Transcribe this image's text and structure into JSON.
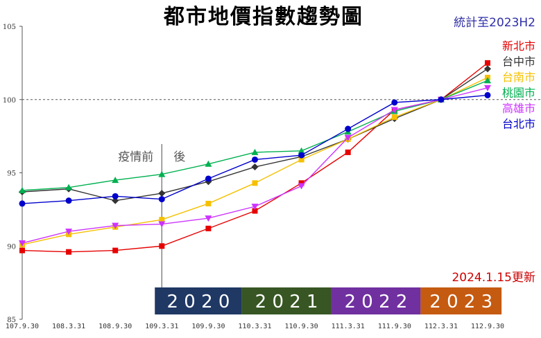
{
  "chart_data": {
    "type": "line",
    "title": "都市地價指數趨勢圖",
    "subtitle": "統計至2023H2",
    "update_note": "2024.1.15更新",
    "xlabel": "",
    "ylabel": "",
    "x": [
      "107.9.30",
      "108.3.31",
      "108.9.30",
      "109.3.31",
      "109.9.30",
      "110.3.31",
      "110.9.30",
      "111.3.31",
      "111.9.30",
      "112.3.31",
      "112.9.30"
    ],
    "ylim": [
      85,
      105
    ],
    "yticks": [
      "85",
      "90",
      "95",
      "100",
      "105"
    ],
    "reference_line": 100,
    "grid": false,
    "legend_position": "right",
    "series": [
      {
        "name": "新北市",
        "color": "#e60000",
        "marker": "square",
        "values": [
          89.7,
          89.6,
          89.7,
          90.0,
          91.2,
          92.4,
          94.3,
          96.4,
          99.3,
          100.0,
          102.5
        ]
      },
      {
        "name": "台中市",
        "color": "#333333",
        "marker": "diamond",
        "values": [
          93.7,
          93.9,
          93.1,
          93.6,
          94.4,
          95.4,
          96.1,
          97.3,
          98.7,
          100.0,
          102.1
        ]
      },
      {
        "name": "台南市",
        "color": "#f5c000",
        "marker": "square",
        "values": [
          90.1,
          90.8,
          91.3,
          91.8,
          92.9,
          94.3,
          95.9,
          97.3,
          98.8,
          100.0,
          101.5
        ]
      },
      {
        "name": "桃園市",
        "color": "#00b050",
        "marker": "triangle-up",
        "values": [
          93.8,
          94.0,
          94.5,
          94.9,
          95.6,
          96.4,
          96.5,
          97.8,
          99.2,
          100.0,
          101.3
        ]
      },
      {
        "name": "高雄市",
        "color": "#cc33ff",
        "marker": "triangle-down",
        "values": [
          90.2,
          91.0,
          91.4,
          91.5,
          91.9,
          92.7,
          94.1,
          97.4,
          99.3,
          100.0,
          100.8
        ]
      },
      {
        "name": "台北市",
        "color": "#0000cc",
        "marker": "circle",
        "values": [
          92.9,
          93.1,
          93.4,
          93.2,
          94.6,
          95.9,
          96.2,
          98.0,
          99.8,
          100.0,
          100.3
        ]
      }
    ],
    "annotations": {
      "before": "疫情前",
      "after": "後",
      "divider_at": "109.3.31"
    },
    "year_bands": [
      {
        "label": "2 0 2 0",
        "color": "#1f3864"
      },
      {
        "label": "2 0 2 1",
        "color": "#375623"
      },
      {
        "label": "2 0 2 2",
        "color": "#7030a0"
      },
      {
        "label": "2 0 2 3",
        "color": "#c55a11"
      }
    ],
    "colors": {
      "subtitle": "#2e2ea8",
      "update_note": "#cc0000",
      "annotation": "#555555"
    }
  }
}
